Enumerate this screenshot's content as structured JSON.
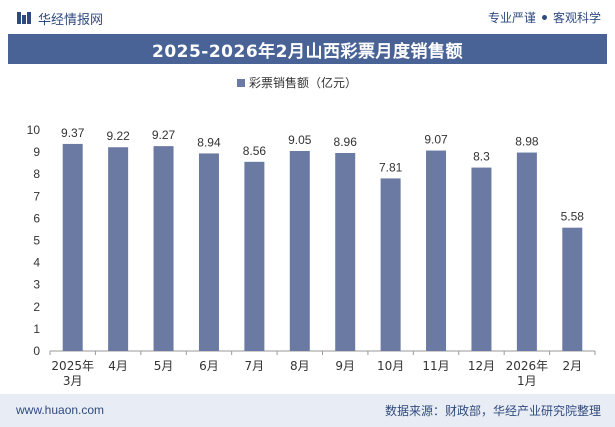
{
  "header": {
    "brand": "华经情报网",
    "tagline_left": "专业严谨",
    "tagline_right": "客观科学"
  },
  "footer": {
    "website": "www.huaon.com",
    "source": "数据来源：财政部，华经产业研究院整理"
  },
  "colors": {
    "title_bar": "#4a6396",
    "bar": "#6b7aa3",
    "brand": "#2f4a7f"
  },
  "chart_data": {
    "type": "bar",
    "title": "2025-2026年2月山西彩票月度销售额",
    "legend": {
      "position": "top-center"
    },
    "categories": [
      "2025年3月",
      "4月",
      "5月",
      "6月",
      "7月",
      "8月",
      "9月",
      "10月",
      "11月",
      "12月",
      "2026年1月",
      "2月"
    ],
    "series": [
      {
        "name": "彩票销售额（亿元）",
        "values": [
          9.37,
          9.22,
          9.27,
          8.94,
          8.56,
          9.05,
          8.96,
          7.81,
          9.07,
          8.3,
          8.98,
          5.58
        ],
        "labels": [
          "9.37",
          "9.22",
          "9.27",
          "8.94",
          "8.56",
          "9.05",
          "8.96",
          "7.81",
          "9.07",
          "8.3",
          "8.98",
          "5.58"
        ]
      }
    ],
    "ylim": [
      0,
      10
    ],
    "yticks": [
      "0",
      "1",
      "2",
      "3",
      "4",
      "5",
      "6",
      "7",
      "8",
      "9",
      "10"
    ],
    "grid": false
  }
}
